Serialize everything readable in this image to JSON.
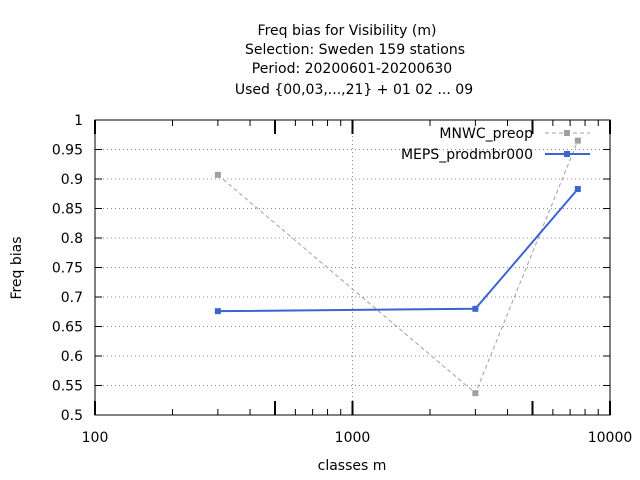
{
  "chart_data": {
    "type": "line",
    "title_lines": [
      "Freq bias  for Visibility (m)",
      "Selection: Sweden    159 stations",
      "Period: 20200601-20200630",
      "Used {00,03,...,21} + 01 02 ... 09"
    ],
    "xlabel": "classes m",
    "ylabel": "Freq bias",
    "x_scale": "log",
    "xlim": [
      100,
      10000
    ],
    "ylim": [
      0.5,
      1.0
    ],
    "x_ticks": [
      100,
      1000,
      10000
    ],
    "x_tick_labels": [
      "100",
      "1000",
      "10000"
    ],
    "y_ticks": [
      0.5,
      0.55,
      0.6,
      0.65,
      0.7,
      0.75,
      0.8,
      0.85,
      0.9,
      0.95,
      1.0
    ],
    "y_tick_labels": [
      "0.5",
      "0.55",
      "0.6",
      "0.65",
      "0.7",
      "0.75",
      "0.8",
      "0.85",
      "0.9",
      "0.95",
      "1"
    ],
    "grid": true,
    "legend_position": "top-right",
    "series": [
      {
        "name": "MNWC_preop",
        "color": "#a0a0a0",
        "dash": true,
        "x": [
          300,
          3000,
          7500
        ],
        "y": [
          0.907,
          0.537,
          0.965
        ]
      },
      {
        "name": "MEPS_prodmbr000",
        "color": "#3a63d4",
        "dash": false,
        "x": [
          300,
          3000,
          7500
        ],
        "y": [
          0.676,
          0.68,
          0.883
        ]
      }
    ]
  }
}
